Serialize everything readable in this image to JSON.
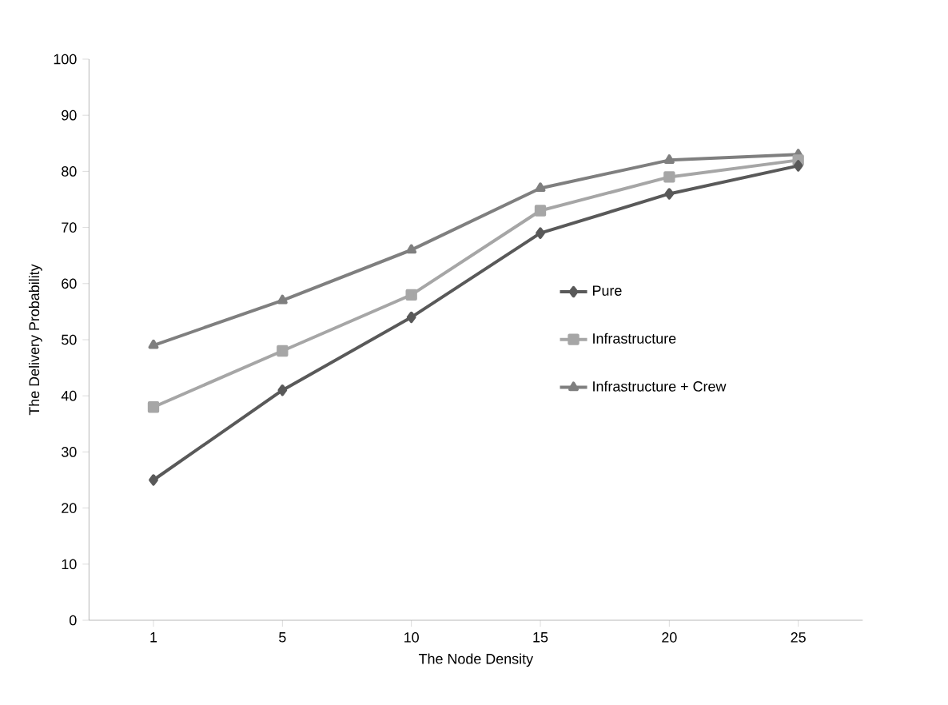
{
  "chart_data": {
    "type": "line",
    "xlabel": "The Node Density",
    "ylabel": "The Delivery Probability",
    "categories": [
      "1",
      "5",
      "10",
      "15",
      "20",
      "25"
    ],
    "series": [
      {
        "name": "Pure",
        "color": "#595959",
        "marker": "diamond",
        "values": [
          25,
          41,
          54,
          69,
          76,
          81
        ]
      },
      {
        "name": "Infrastructure",
        "color": "#a6a6a6",
        "marker": "square",
        "values": [
          38,
          48,
          58,
          73,
          79,
          82
        ]
      },
      {
        "name": "Infrastructure + Crew",
        "color": "#7f7f7f",
        "marker": "triangle",
        "values": [
          49,
          57,
          66,
          77,
          82,
          83
        ]
      }
    ],
    "ylim": [
      0,
      100
    ],
    "yticks": [
      0,
      10,
      20,
      30,
      40,
      50,
      60,
      70,
      80,
      90,
      100
    ],
    "grid": false,
    "legend": "right",
    "line_style": "solid"
  }
}
